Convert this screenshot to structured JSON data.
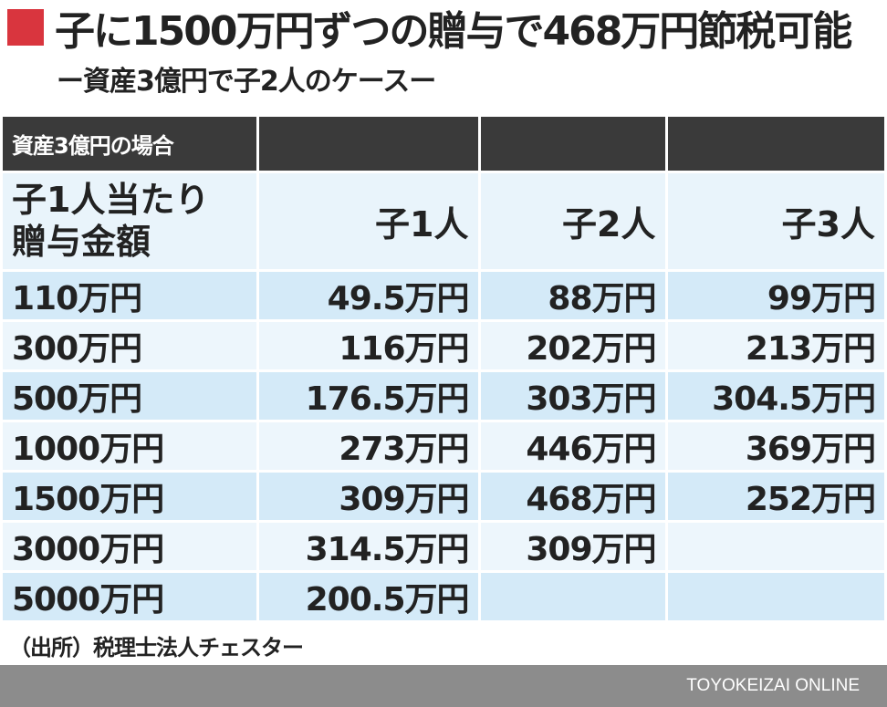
{
  "header": {
    "title": "子に1500万円ずつの贈与で468万円節税可能",
    "subtitle": "ー資産3億円で子2人のケースー"
  },
  "chart_data": {
    "type": "table",
    "title": "子に1500万円ずつの贈与で468万円節税可能",
    "subtitle": "ー資産3億円で子2人のケースー",
    "corner_label": "資産3億円の場合",
    "row_header_label_line1": "子1人当たり",
    "row_header_label_line2": "贈与金額",
    "columns": [
      "子1人",
      "子2人",
      "子3人"
    ],
    "rows": [
      {
        "label": "110万円",
        "values": [
          "49.5万円",
          "88万円",
          "99万円"
        ]
      },
      {
        "label": "300万円",
        "values": [
          "116万円",
          "202万円",
          "213万円"
        ]
      },
      {
        "label": "500万円",
        "values": [
          "176.5万円",
          "303万円",
          "304.5万円"
        ]
      },
      {
        "label": "1000万円",
        "values": [
          "273万円",
          "446万円",
          "369万円"
        ]
      },
      {
        "label": "1500万円",
        "values": [
          "309万円",
          "468万円",
          "252万円"
        ]
      },
      {
        "label": "3000万円",
        "values": [
          "314.5万円",
          "309万円",
          ""
        ]
      },
      {
        "label": "5000万円",
        "values": [
          "200.5万円",
          "",
          ""
        ]
      }
    ]
  },
  "footer": {
    "source": "（出所）税理士法人チェスター",
    "brand": "TOYOKEIZAI ONLINE"
  },
  "colors": {
    "accent": "#d9353e",
    "header_bg": "#3a3a3a",
    "row_odd": "#d4eaf8",
    "row_even": "#edf6fc",
    "footer_bg": "#8c8c8c"
  }
}
